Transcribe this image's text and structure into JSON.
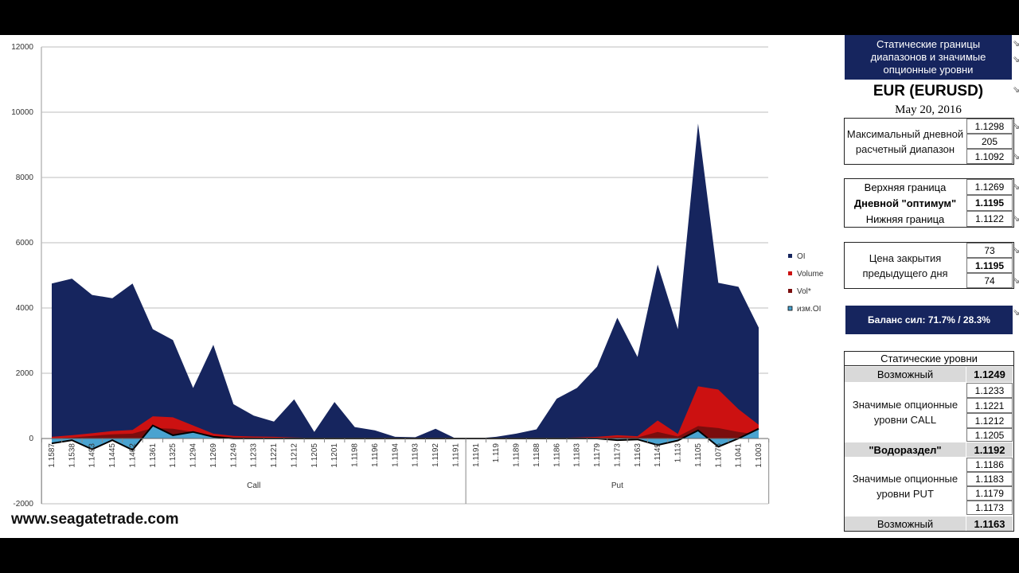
{
  "chart_data": {
    "type": "area",
    "ylim": [
      -2000,
      12000
    ],
    "yticks": [
      "12000",
      "10000",
      "8000",
      "6000",
      "4000",
      "2000",
      "0",
      "-2000"
    ],
    "x": [
      "1.1587",
      "1.1538",
      "1.1493",
      "1.1445",
      "1.1402",
      "1.1361",
      "1.1325",
      "1.1294",
      "1.1269",
      "1.1249",
      "1.1233",
      "1.1221",
      "1.1212",
      "1.1205",
      "1.1201",
      "1.1198",
      "1.1196",
      "1.1194",
      "1.1193",
      "1.1192",
      "1.1191",
      "1.1191",
      "1.119",
      "1.1189",
      "1.1188",
      "1.1186",
      "1.1183",
      "1.1179",
      "1.1173",
      "1.1163",
      "1.1149",
      "1.113",
      "1.1105",
      "1.1075",
      "1.1041",
      "1.1003"
    ],
    "groups": [
      {
        "label": "Call",
        "count": 21
      },
      {
        "label": "Put",
        "count": 15
      }
    ],
    "series": [
      {
        "name": "OI",
        "color": "#16255e",
        "values": [
          4750,
          4900,
          4400,
          4300,
          4750,
          3350,
          3020,
          1550,
          2870,
          1050,
          700,
          520,
          1200,
          200,
          1120,
          350,
          250,
          50,
          40,
          300,
          0,
          0,
          50,
          150,
          280,
          1220,
          1550,
          2200,
          3700,
          2500,
          5330,
          3350,
          9650,
          4770,
          4650,
          3400
        ]
      },
      {
        "name": "Volume",
        "color": "#cc1111",
        "values": [
          50,
          100,
          160,
          230,
          260,
          680,
          650,
          400,
          150,
          80,
          60,
          50,
          30,
          20,
          10,
          5,
          5,
          0,
          0,
          0,
          0,
          0,
          0,
          0,
          10,
          20,
          30,
          50,
          100,
          70,
          550,
          140,
          1600,
          1500,
          900,
          420
        ]
      },
      {
        "name": "Vol*",
        "color": "#7a0d0d",
        "values": [
          0,
          30,
          80,
          130,
          150,
          320,
          300,
          200,
          80,
          40,
          30,
          20,
          10,
          5,
          5,
          0,
          0,
          0,
          0,
          0,
          0,
          0,
          0,
          0,
          5,
          10,
          10,
          20,
          40,
          30,
          200,
          60,
          380,
          320,
          200,
          120
        ]
      },
      {
        "name": "изм.OI",
        "color": "#4aa3d0",
        "values": [
          -150,
          -50,
          -330,
          -50,
          -350,
          400,
          100,
          200,
          50,
          0,
          0,
          0,
          0,
          0,
          0,
          0,
          0,
          0,
          0,
          0,
          0,
          0,
          0,
          0,
          0,
          0,
          0,
          0,
          -50,
          -30,
          -200,
          -60,
          250,
          -250,
          0,
          300
        ]
      }
    ],
    "legend": [
      "OI",
      "Volume",
      "Vol*",
      "изм.OI"
    ],
    "legend_position": "right",
    "grid": true
  },
  "website": "www.seagatetrade.com",
  "panel": {
    "header": "Статические границы диапазонов и значимые опционные уровни",
    "instrument": "EUR (EURUSD)",
    "date": "May 20, 2016",
    "range_label": "Максимальный дневной расчетный диапазон",
    "range_values": [
      "1.1298",
      "205",
      "1.1092"
    ],
    "bounds_labels": [
      "Верхняя граница",
      "Дневной \"оптимум\"",
      "Нижняя граница"
    ],
    "bounds_values": [
      "1.1269",
      "1.1195",
      "1.1122"
    ],
    "close_label": "Цена закрытия предыдущего дня",
    "close_values": [
      "73",
      "1.1195",
      "74"
    ],
    "balance": "Баланс сил: 71.7% / 28.3%",
    "static_title": "Статические уровни",
    "possible_top_label": "Возможный",
    "possible_top_value": "1.1249",
    "call_label": "Значимые опционные уровни CALL",
    "call_values": [
      "1.1233",
      "1.1221",
      "1.1212",
      "1.1205"
    ],
    "watershed_label": "\"Водораздел\"",
    "watershed_value": "1.1192",
    "put_label": "Значимые опционные уровни PUT",
    "put_values": [
      "1.1186",
      "1.1183",
      "1.1179",
      "1.1173"
    ],
    "possible_bottom_label": "Возможный",
    "possible_bottom_value": "1.1163"
  }
}
